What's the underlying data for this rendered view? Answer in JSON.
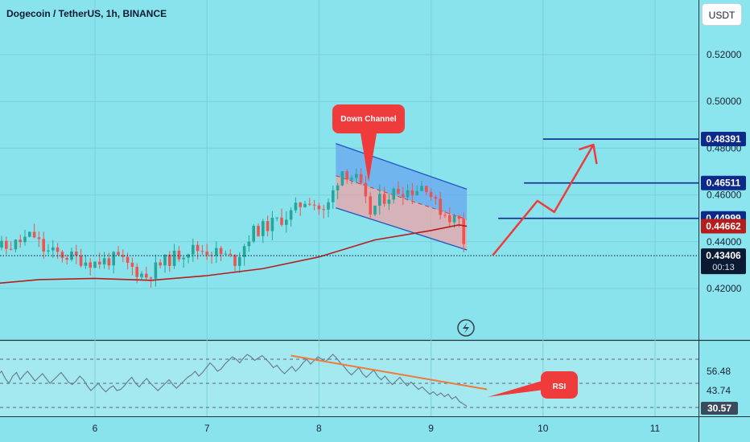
{
  "header": {
    "title": "Dogecoin / TetherUS, 1h, BINANCE",
    "currency_button": "USDT"
  },
  "colors": {
    "background": "#88e3ec",
    "up_candle": "#26a69a",
    "down_candle": "#ef5350",
    "ma_line": "#b71c1c",
    "level_line": "#0d2a8a",
    "arrow": "#ef3b3b",
    "channel_blue": "#6aa6f0",
    "channel_red": "#f0a3a8"
  },
  "annotations": {
    "down_channel": "Down Channel",
    "rsi": "RSI"
  },
  "chart_data": [
    {
      "type": "candlestick",
      "title": "Dogecoin / TetherUS, 1h, BINANCE",
      "x_tick_labels": [
        "6",
        "7",
        "8",
        "9",
        "10",
        "11"
      ],
      "y_tick_labels": [
        "0.52000",
        "0.50000",
        "0.48000",
        "0.46000",
        "0.44000",
        "0.42000"
      ],
      "ylim": [
        0.409,
        0.539
      ],
      "price_labels": [
        {
          "value": "0.48391",
          "style": "level"
        },
        {
          "value": "0.46511",
          "style": "level"
        },
        {
          "value": "0.44999",
          "style": "level"
        },
        {
          "value": "0.44662",
          "style": "ma"
        },
        {
          "value": "0.43406",
          "style": "last",
          "sub": "00:13"
        }
      ],
      "levels": [
        0.48391,
        0.46511,
        0.44999
      ],
      "last_price": 0.43406,
      "projection_path": [
        {
          "x": 9.55,
          "y": 0.4341
        },
        {
          "x": 9.95,
          "y": 0.4575
        },
        {
          "x": 10.1,
          "y": 0.4527
        },
        {
          "x": 10.45,
          "y": 0.4815
        }
      ],
      "down_channel": {
        "upper": [
          {
            "x": 8.15,
            "y": 0.482
          },
          {
            "x": 9.32,
            "y": 0.4625
          }
        ],
        "lower": [
          {
            "x": 8.15,
            "y": 0.4545
          },
          {
            "x": 9.32,
            "y": 0.4365
          }
        ]
      },
      "moving_average": [
        {
          "x": 5.15,
          "y": 0.4223
        },
        {
          "x": 5.5,
          "y": 0.4238
        },
        {
          "x": 6.0,
          "y": 0.4243
        },
        {
          "x": 6.5,
          "y": 0.4235
        },
        {
          "x": 7.0,
          "y": 0.4255
        },
        {
          "x": 7.5,
          "y": 0.4285
        },
        {
          "x": 8.0,
          "y": 0.4335
        },
        {
          "x": 8.5,
          "y": 0.4408
        },
        {
          "x": 9.0,
          "y": 0.4448
        },
        {
          "x": 9.25,
          "y": 0.4472
        },
        {
          "x": 9.32,
          "y": 0.4466
        }
      ]
    },
    {
      "type": "line",
      "title": "RSI",
      "y_tick_labels": [
        "56.48",
        "43.74",
        "30.57"
      ],
      "ylim": [
        24,
        80
      ],
      "series": [
        {
          "values": [
            58,
            62,
            55,
            52,
            57,
            60,
            54,
            50,
            56,
            59,
            53,
            57,
            60,
            56,
            52,
            55,
            58,
            54,
            50,
            53,
            56,
            59,
            55,
            51,
            49,
            52,
            56,
            53,
            48,
            44,
            47,
            50,
            46,
            43,
            46,
            48,
            44,
            45,
            48,
            52,
            55,
            50,
            47,
            51,
            54,
            50,
            47,
            44,
            47,
            50,
            53,
            49,
            46,
            49,
            52,
            55,
            57,
            60,
            56,
            59,
            63,
            67,
            64,
            60,
            62,
            66,
            69,
            72,
            70,
            67,
            71,
            74,
            72,
            69,
            71,
            73,
            70,
            67,
            63,
            65,
            61,
            58,
            61,
            64,
            60,
            63,
            67,
            70,
            66,
            69,
            72,
            70,
            68,
            71,
            74,
            71,
            67,
            64,
            60,
            57,
            60,
            63,
            58,
            55,
            58,
            61,
            56,
            53,
            56,
            52,
            49,
            52,
            55,
            51,
            48,
            51,
            48,
            45,
            47,
            44,
            41,
            43,
            40,
            42,
            39,
            41,
            37,
            39,
            35,
            33,
            31
          ]
        }
      ],
      "trendline": [
        {
          "x": 7.75,
          "y": 73
        },
        {
          "x": 9.5,
          "y": 45
        }
      ],
      "dashed_levels": [
        70,
        50,
        30
      ]
    }
  ]
}
